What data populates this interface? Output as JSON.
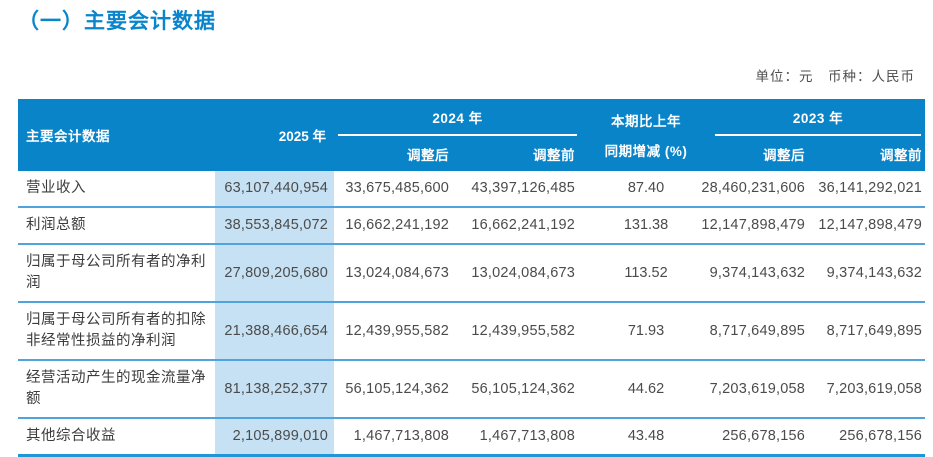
{
  "page": {
    "title": "（一）主要会计数据",
    "unit_note": "单位：元　币种：人民币"
  },
  "colors": {
    "header_blue": "#0984c9",
    "title_blue": "#0a85cb",
    "highlight_column": "#c6e1f3",
    "row_divider": "#4fa5db",
    "bottom_border": "#2196d6"
  },
  "table": {
    "header": {
      "label_col": "主要会计数据",
      "col_2025": "2025 年",
      "group_2024": "2024 年",
      "group_2023": "2023 年",
      "change_line1": "本期比上年",
      "change_line2": "同期增减 (%)",
      "adjusted_after": "调整后",
      "adjusted_before": "调整前"
    },
    "rows": [
      {
        "label": "营业收入",
        "y2025": "63,107,440,954",
        "y2024_adj": "33,675,485,600",
        "y2024_pre": "43,397,126,485",
        "change": "87.40",
        "y2023_adj": "28,460,231,606",
        "y2023_pre": "36,141,292,021"
      },
      {
        "label": "利润总额",
        "y2025": "38,553,845,072",
        "y2024_adj": "16,662,241,192",
        "y2024_pre": "16,662,241,192",
        "change": "131.38",
        "y2023_adj": "12,147,898,479",
        "y2023_pre": "12,147,898,479"
      },
      {
        "label": "归属于母公司所有者的净利润",
        "y2025": "27,809,205,680",
        "y2024_adj": "13,024,084,673",
        "y2024_pre": "13,024,084,673",
        "change": "113.52",
        "y2023_adj": "9,374,143,632",
        "y2023_pre": "9,374,143,632"
      },
      {
        "label": "归属于母公司所有者的扣除非经常性损益的净利润",
        "y2025": "21,388,466,654",
        "y2024_adj": "12,439,955,582",
        "y2024_pre": "12,439,955,582",
        "change": "71.93",
        "y2023_adj": "8,717,649,895",
        "y2023_pre": "8,717,649,895"
      },
      {
        "label": "经营活动产生的现金流量净额",
        "y2025": "81,138,252,377",
        "y2024_adj": "56,105,124,362",
        "y2024_pre": "56,105,124,362",
        "change": "44.62",
        "y2023_adj": "7,203,619,058",
        "y2023_pre": "7,203,619,058"
      },
      {
        "label": "其他综合收益",
        "y2025": "2,105,899,010",
        "y2024_adj": "1,467,713,808",
        "y2024_pre": "1,467,713,808",
        "change": "43.48",
        "y2023_adj": "256,678,156",
        "y2023_pre": "256,678,156"
      }
    ]
  }
}
